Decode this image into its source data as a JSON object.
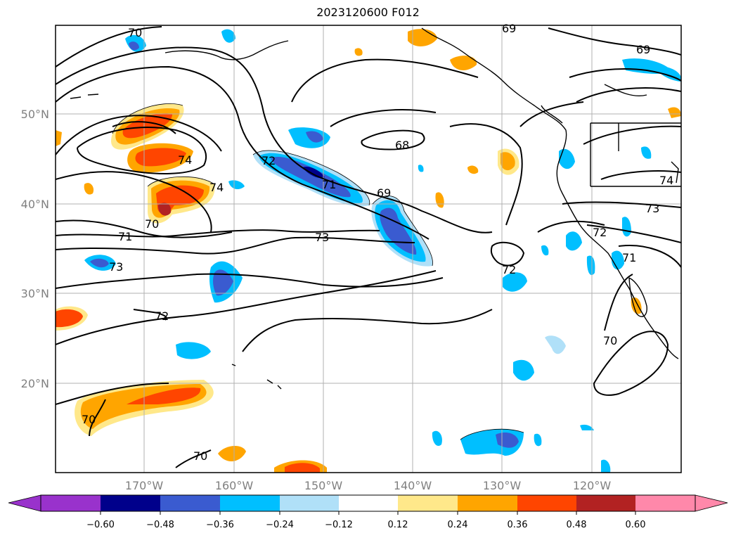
{
  "title": "2023120600 F012",
  "map": {
    "lat_labels": [
      "50°N",
      "40°N",
      "30°N",
      "20°N"
    ],
    "lon_labels": [
      "170°W",
      "160°W",
      "150°W",
      "140°W",
      "130°W",
      "120°W"
    ],
    "contour_labels": [
      "70",
      "69",
      "69",
      "68",
      "74",
      "74",
      "72",
      "71",
      "69",
      "70",
      "71",
      "73",
      "73",
      "73",
      "72",
      "72",
      "72",
      "71",
      "70",
      "70",
      "70",
      "74"
    ]
  },
  "colorbar": {
    "ticks": [
      "−0.60",
      "−0.48",
      "−0.36",
      "−0.24",
      "−0.12",
      "0.12",
      "0.24",
      "0.36",
      "0.48",
      "0.60"
    ],
    "colors": [
      "#9932cc",
      "#00008b",
      "#3a5bd0",
      "#00bfff",
      "#b0e0f8",
      "#ffffff",
      "#ffe88a",
      "#ffa500",
      "#ff4500",
      "#b22222",
      "#ff88aa"
    ]
  }
}
